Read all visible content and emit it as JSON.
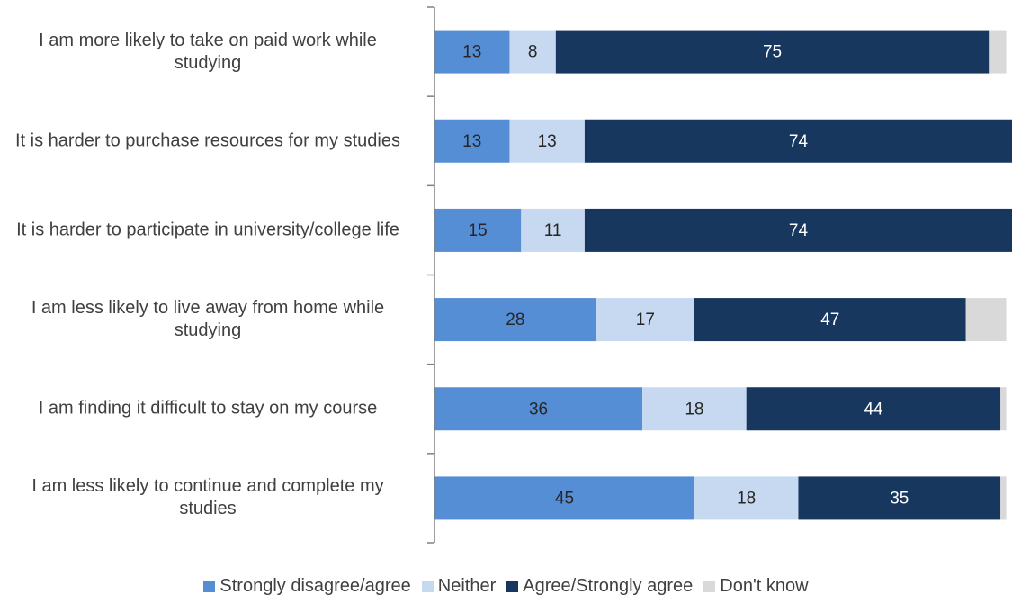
{
  "chart_data": {
    "type": "stacked-bar-horizontal",
    "categories": [
      "I am more likely to take on paid work while studying",
      "It is harder to purchase resources for my studies",
      "It is harder to participate in university/college life",
      "I am less likely to live away from home while studying",
      "I am finding it difficult to stay on my course",
      "I am less likely to continue and complete my studies"
    ],
    "series": [
      {
        "name": "Strongly disagree/agree",
        "color": "#558ed5",
        "label_color": "#262626",
        "values": [
          13,
          13,
          15,
          28,
          36,
          45
        ]
      },
      {
        "name": "Neither",
        "color": "#c6d9f1",
        "label_color": "#262626",
        "values": [
          8,
          13,
          11,
          17,
          18,
          18
        ]
      },
      {
        "name": "Agree/Strongly agree",
        "color": "#17375e",
        "label_color": "#ffffff",
        "values": [
          75,
          74,
          74,
          47,
          44,
          35
        ]
      },
      {
        "name": "Don't know",
        "color": "#d9d9d9",
        "labels": false,
        "values": [
          3,
          0,
          0,
          7,
          1,
          1
        ]
      }
    ],
    "xlim": [
      0,
      100
    ],
    "legend": "bottom"
  }
}
